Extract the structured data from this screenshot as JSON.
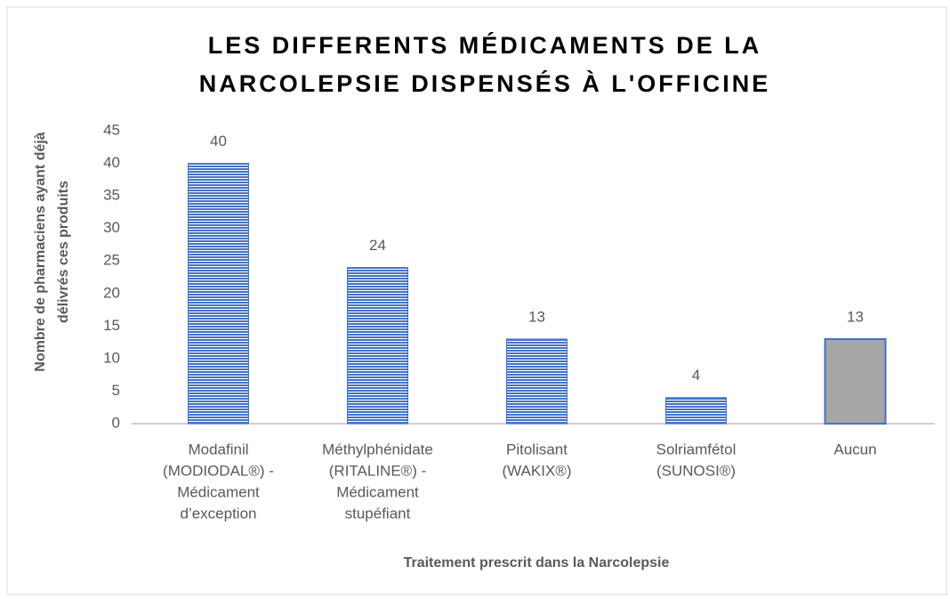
{
  "chart_data": {
    "type": "bar",
    "title": [
      "LES DIFFERENTS MÉDICAMENTS DE LA",
      "NARCOLEPSIE DISPENSÉS À L'OFFICINE"
    ],
    "ylabel": [
      "Nombre de pharmaciens ayant déjà",
      "délivrés ces produits"
    ],
    "xlabel": "Traitement prescrit dans la Narcolepsie",
    "categories": [
      [
        "Modafinil",
        "(MODIODAL®) -",
        "Médicament",
        "d’exception"
      ],
      [
        "Méthylphénidate",
        "(RITALINE®) -",
        "Médicament",
        "stupéfiant"
      ],
      [
        "Pitolisant",
        "(WAKIX®)"
      ],
      [
        "Solriamfétol",
        "(SUNOSI®)"
      ],
      [
        "Aucun"
      ]
    ],
    "values": [
      40,
      24,
      13,
      4,
      13
    ],
    "colors": [
      "#4472c4",
      "#4472c4",
      "#4472c4",
      "#4472c4",
      "#a6a6a6"
    ],
    "patterns": [
      "stripes",
      "stripes",
      "stripes",
      "stripes",
      "solid"
    ],
    "ylim": [
      0,
      45
    ],
    "yticks": [
      0,
      5,
      10,
      15,
      20,
      25,
      30,
      35,
      40,
      45
    ],
    "grid": false
  }
}
